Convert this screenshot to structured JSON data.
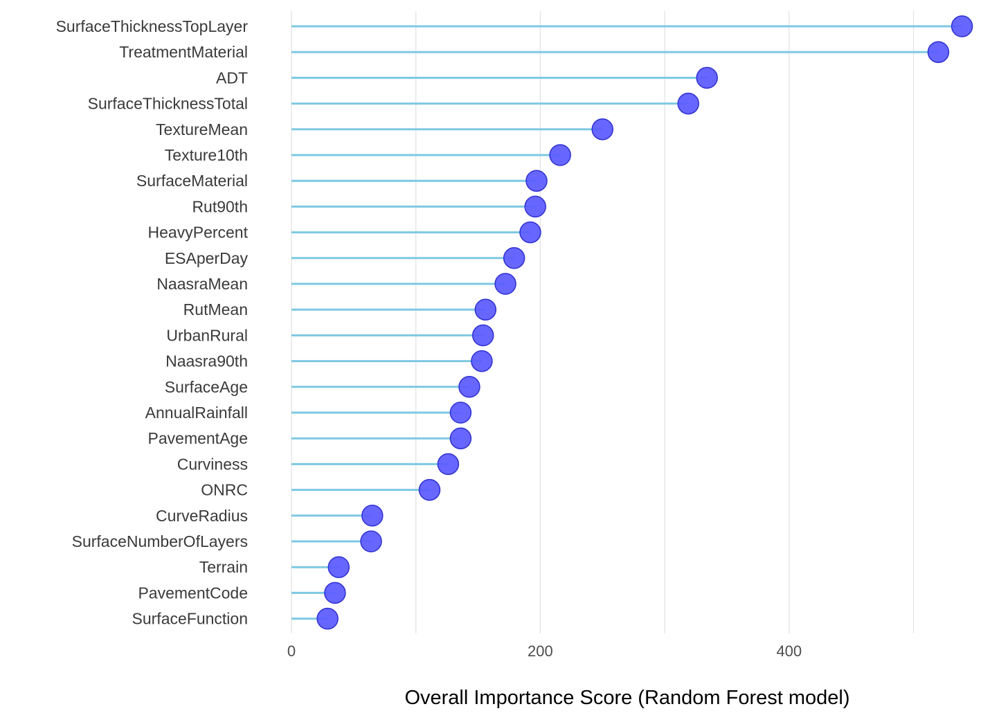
{
  "chart_data": {
    "type": "lollipop",
    "orientation": "horizontal",
    "title": "",
    "xlabel": "Overall Importance Score (Random Forest model)",
    "ylabel": "",
    "xlim": [
      0,
      540
    ],
    "xticks": [
      0,
      200,
      400
    ],
    "xtick_labels": [
      "0",
      "200",
      "400"
    ],
    "minor_gridlines": [
      100,
      300,
      500
    ],
    "grid": "vertical",
    "legend": "none",
    "colors": {
      "stem": "#7ec8e3",
      "point_fill": "#5a5aff",
      "point_edge": "#2f2fd0",
      "gridline": "#e3e3e3"
    },
    "categories": [
      "SurfaceThicknessTopLayer",
      "TreatmentMaterial",
      "ADT",
      "SurfaceThicknessTotal",
      "TextureMean",
      "Texture10th",
      "SurfaceMaterial",
      "Rut90th",
      "HeavyPercent",
      "ESAperDay",
      "NaasraMean",
      "RutMean",
      "UrbanRural",
      "Naasra90th",
      "SurfaceAge",
      "AnnualRainfall",
      "PavementAge",
      "Curviness",
      "ONRC",
      "CurveRadius",
      "SurfaceNumberOfLayers",
      "Terrain",
      "PavementCode",
      "SurfaceFunction"
    ],
    "values": [
      539,
      520,
      334,
      319,
      250,
      216,
      197,
      196,
      192,
      179,
      172,
      156,
      154,
      153,
      143,
      136,
      136,
      126,
      111,
      65,
      64,
      38,
      35,
      29
    ]
  }
}
